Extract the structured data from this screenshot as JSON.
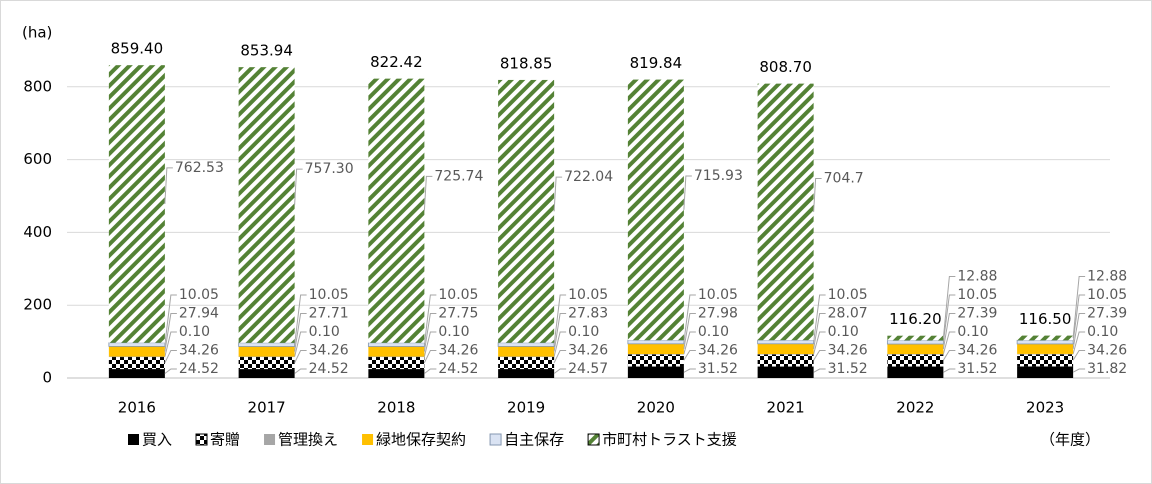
{
  "chart_data": {
    "type": "stacked_bar",
    "y_axis_label": "(ha)",
    "x_axis_label": "（年度）",
    "categories": [
      "2016",
      "2017",
      "2018",
      "2019",
      "2020",
      "2021",
      "2022",
      "2023"
    ],
    "ylim": [
      0,
      1000
    ],
    "yticks": [
      0,
      200,
      400,
      600,
      800
    ],
    "grid": true,
    "legend": "bottom",
    "series": [
      {
        "name": "買入",
        "color": "#000000",
        "values": [
          24.52,
          24.52,
          24.52,
          24.57,
          31.52,
          31.52,
          31.52,
          31.82
        ],
        "value_labels": [
          "24.52",
          "24.52",
          "24.52",
          "24.57",
          "31.52",
          "31.52",
          "31.52",
          "31.82"
        ]
      },
      {
        "name": "寄贈",
        "color": "#000000",
        "pattern": "checker",
        "values": [
          34.26,
          34.26,
          34.26,
          34.26,
          34.26,
          34.26,
          34.26,
          34.26
        ],
        "value_labels": [
          "34.26",
          "34.26",
          "34.26",
          "34.26",
          "34.26",
          "34.26",
          "34.26",
          "34.26"
        ]
      },
      {
        "name": "管理換え",
        "color": "#a6a6a6",
        "values": [
          0.1,
          0.1,
          0.1,
          0.1,
          0.1,
          0.1,
          0.1,
          0.1
        ],
        "value_labels": [
          "0.10",
          "0.10",
          "0.10",
          "0.10",
          "0.10",
          "0.10",
          "0.10",
          "0.10"
        ]
      },
      {
        "name": "緑地保存契約",
        "color": "#ffc000",
        "values": [
          27.94,
          27.71,
          27.75,
          27.83,
          27.98,
          28.07,
          27.39,
          27.39
        ],
        "value_labels": [
          "27.94",
          "27.71",
          "27.75",
          "27.83",
          "27.98",
          "28.07",
          "27.39",
          "27.39"
        ]
      },
      {
        "name": "自主保存",
        "color": "#dae3f3",
        "values": [
          10.05,
          10.05,
          10.05,
          10.05,
          10.05,
          10.05,
          10.05,
          10.05
        ],
        "value_labels": [
          "10.05",
          "10.05",
          "10.05",
          "10.05",
          "10.05",
          "10.05",
          "10.05",
          "10.05"
        ]
      },
      {
        "name": "市町村トラスト支援",
        "color": "#548235",
        "pattern": "diagonal",
        "values": [
          762.53,
          757.3,
          725.74,
          722.04,
          715.93,
          704.7,
          12.88,
          12.88
        ],
        "value_labels": [
          "762.53",
          "757.30",
          "725.74",
          "722.04",
          "715.93",
          "704.7",
          "12.88",
          "12.88"
        ]
      }
    ],
    "totals": [
      859.4,
      853.94,
      822.42,
      818.85,
      819.84,
      808.7,
      116.2,
      116.5
    ],
    "total_labels": [
      "859.40",
      "853.94",
      "822.42",
      "818.85",
      "819.84",
      "808.70",
      "116.20",
      "116.50"
    ]
  }
}
